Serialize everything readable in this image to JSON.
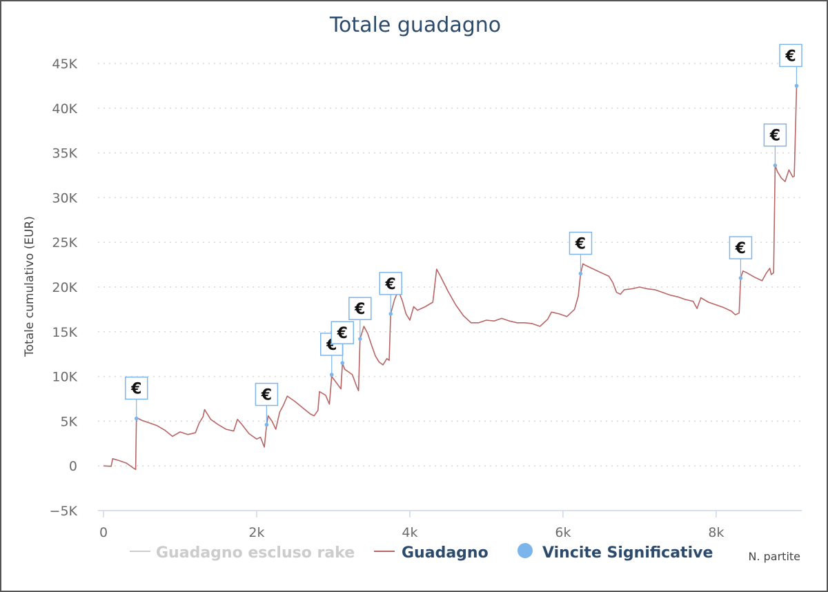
{
  "chart_data": {
    "type": "line",
    "title": "Totale guadagno",
    "ylabel": "Totale cumulativo (EUR)",
    "xlabel": "N. partite",
    "xlim": [
      0,
      9100
    ],
    "ylim": [
      -5000,
      45000
    ],
    "x_ticks": [
      0,
      2000,
      4000,
      6000,
      8000
    ],
    "x_tick_labels": [
      "0",
      "2k",
      "4k",
      "6k",
      "8k"
    ],
    "y_ticks": [
      -5000,
      0,
      5000,
      10000,
      15000,
      20000,
      25000,
      30000,
      35000,
      40000,
      45000
    ],
    "y_tick_labels": [
      "−5K",
      "0",
      "5K",
      "10K",
      "15K",
      "20K",
      "25K",
      "30K",
      "35K",
      "40K",
      "45K"
    ],
    "grid": "horizontal dotted",
    "legend_position": "bottom",
    "series": [
      {
        "name": "Guadagno escluso rake",
        "color": "#cccccc",
        "hidden": true,
        "points": []
      },
      {
        "name": "Guadagno",
        "color": "#b86464",
        "points": [
          [
            0,
            0
          ],
          [
            100,
            -50
          ],
          [
            120,
            800
          ],
          [
            200,
            600
          ],
          [
            300,
            300
          ],
          [
            400,
            -300
          ],
          [
            420,
            -400
          ],
          [
            430,
            5400
          ],
          [
            500,
            5100
          ],
          [
            600,
            4800
          ],
          [
            700,
            4500
          ],
          [
            800,
            4000
          ],
          [
            900,
            3300
          ],
          [
            1000,
            3800
          ],
          [
            1100,
            3500
          ],
          [
            1200,
            3700
          ],
          [
            1250,
            4800
          ],
          [
            1300,
            5500
          ],
          [
            1320,
            6300
          ],
          [
            1400,
            5200
          ],
          [
            1500,
            4600
          ],
          [
            1600,
            4100
          ],
          [
            1700,
            3900
          ],
          [
            1750,
            5200
          ],
          [
            1800,
            4700
          ],
          [
            1900,
            3600
          ],
          [
            2000,
            3000
          ],
          [
            2050,
            3200
          ],
          [
            2100,
            2100
          ],
          [
            2130,
            4600
          ],
          [
            2150,
            5600
          ],
          [
            2200,
            5000
          ],
          [
            2250,
            4100
          ],
          [
            2300,
            6000
          ],
          [
            2350,
            6800
          ],
          [
            2400,
            7800
          ],
          [
            2500,
            7200
          ],
          [
            2600,
            6500
          ],
          [
            2700,
            5800
          ],
          [
            2750,
            5600
          ],
          [
            2800,
            6200
          ],
          [
            2820,
            8300
          ],
          [
            2900,
            7900
          ],
          [
            2950,
            6900
          ],
          [
            2980,
            10000
          ],
          [
            3050,
            9200
          ],
          [
            3100,
            8600
          ],
          [
            3120,
            11500
          ],
          [
            3150,
            10800
          ],
          [
            3250,
            10200
          ],
          [
            3300,
            9000
          ],
          [
            3330,
            8400
          ],
          [
            3350,
            14200
          ],
          [
            3400,
            15600
          ],
          [
            3450,
            14800
          ],
          [
            3500,
            13500
          ],
          [
            3550,
            12300
          ],
          [
            3600,
            11600
          ],
          [
            3650,
            11300
          ],
          [
            3700,
            12000
          ],
          [
            3730,
            11800
          ],
          [
            3750,
            17000
          ],
          [
            3800,
            18600
          ],
          [
            3850,
            19600
          ],
          [
            3900,
            18500
          ],
          [
            3950,
            17000
          ],
          [
            4000,
            16300
          ],
          [
            4050,
            17800
          ],
          [
            4100,
            17400
          ],
          [
            4200,
            17800
          ],
          [
            4300,
            18300
          ],
          [
            4350,
            22000
          ],
          [
            4400,
            21200
          ],
          [
            4500,
            19500
          ],
          [
            4600,
            18000
          ],
          [
            4700,
            16800
          ],
          [
            4800,
            16000
          ],
          [
            4900,
            16000
          ],
          [
            5000,
            16300
          ],
          [
            5100,
            16200
          ],
          [
            5200,
            16500
          ],
          [
            5300,
            16200
          ],
          [
            5400,
            16000
          ],
          [
            5500,
            16000
          ],
          [
            5600,
            15900
          ],
          [
            5700,
            15600
          ],
          [
            5800,
            16400
          ],
          [
            5850,
            17200
          ],
          [
            5950,
            17000
          ],
          [
            6050,
            16700
          ],
          [
            6150,
            17500
          ],
          [
            6200,
            19000
          ],
          [
            6230,
            21500
          ],
          [
            6260,
            22600
          ],
          [
            6300,
            22400
          ],
          [
            6400,
            22000
          ],
          [
            6500,
            21600
          ],
          [
            6600,
            21200
          ],
          [
            6650,
            20500
          ],
          [
            6700,
            19400
          ],
          [
            6750,
            19200
          ],
          [
            6800,
            19700
          ],
          [
            6900,
            19800
          ],
          [
            7000,
            20000
          ],
          [
            7100,
            19800
          ],
          [
            7200,
            19700
          ],
          [
            7300,
            19400
          ],
          [
            7400,
            19100
          ],
          [
            7500,
            18900
          ],
          [
            7600,
            18600
          ],
          [
            7700,
            18400
          ],
          [
            7750,
            17600
          ],
          [
            7800,
            18800
          ],
          [
            7900,
            18300
          ],
          [
            8000,
            18000
          ],
          [
            8100,
            17700
          ],
          [
            8200,
            17300
          ],
          [
            8250,
            16900
          ],
          [
            8300,
            17100
          ],
          [
            8320,
            21000
          ],
          [
            8350,
            21800
          ],
          [
            8400,
            21600
          ],
          [
            8500,
            21100
          ],
          [
            8600,
            20700
          ],
          [
            8650,
            21500
          ],
          [
            8700,
            22100
          ],
          [
            8720,
            21400
          ],
          [
            8750,
            21600
          ],
          [
            8770,
            33600
          ],
          [
            8800,
            32900
          ],
          [
            8850,
            32200
          ],
          [
            8900,
            31800
          ],
          [
            8950,
            33100
          ],
          [
            9000,
            32300
          ],
          [
            9020,
            32400
          ],
          [
            9050,
            42500
          ]
        ]
      }
    ],
    "markers": {
      "name": "Vincite Significative",
      "color": "#7cb5ec",
      "symbol": "€",
      "points": [
        [
          430,
          5300
        ],
        [
          2130,
          4600
        ],
        [
          2980,
          10200
        ],
        [
          3120,
          11500
        ],
        [
          3350,
          14200
        ],
        [
          3750,
          17000
        ],
        [
          6230,
          21500
        ],
        [
          8320,
          21000
        ],
        [
          8770,
          33600
        ],
        [
          9050,
          42500
        ]
      ]
    },
    "colors": {
      "title": "#2c4a6b",
      "legend_active": "#2c4a6b",
      "legend_inactive": "#cccccc",
      "grid": "#d8d8d8",
      "axis": "#ccd6eb"
    }
  }
}
